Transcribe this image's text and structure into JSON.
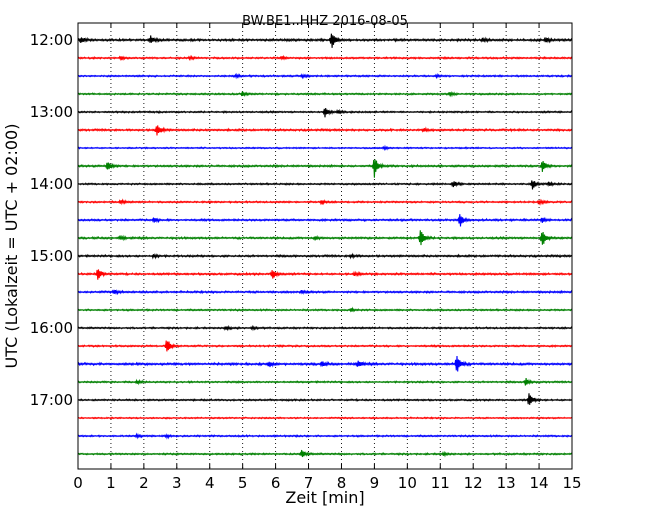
{
  "chart_data": {
    "type": "line",
    "title": "BW.BE1..HHZ 2016-08-05",
    "xlabel": "Zeit  [min]",
    "ylabel": "UTC (Lokalzeit = UTC + 02:00)",
    "xlim": [
      0,
      15
    ],
    "xticks": [
      "0",
      "1",
      "2",
      "3",
      "4",
      "5",
      "6",
      "7",
      "8",
      "9",
      "10",
      "11",
      "12",
      "13",
      "14",
      "15"
    ],
    "hour_labels": [
      "12:00",
      "13:00",
      "14:00",
      "15:00",
      "16:00",
      "17:00"
    ],
    "grid": "vertical dotted at each minute",
    "legend": "none",
    "color_cycle": [
      "#000000",
      "#ff0000",
      "#0000ff",
      "#008000"
    ],
    "series": [
      {
        "time": "12:00",
        "color": "#000000",
        "noise": 0.8,
        "events": [
          [
            0.1,
            3
          ],
          [
            2.2,
            4
          ],
          [
            7.7,
            10
          ],
          [
            12.3,
            2
          ],
          [
            14.2,
            3
          ]
        ]
      },
      {
        "time": "12:15",
        "color": "#ff0000",
        "noise": 0.6,
        "events": [
          [
            1.3,
            2
          ],
          [
            3.4,
            1.5
          ],
          [
            6.2,
            1.5
          ]
        ]
      },
      {
        "time": "12:30",
        "color": "#0000ff",
        "noise": 0.6,
        "events": [
          [
            4.8,
            1.5
          ],
          [
            6.8,
            1.5
          ],
          [
            10.9,
            1.5
          ]
        ]
      },
      {
        "time": "12:45",
        "color": "#008000",
        "noise": 0.6,
        "events": [
          [
            5.0,
            2.5
          ],
          [
            11.3,
            1.5
          ]
        ]
      },
      {
        "time": "13:00",
        "color": "#000000",
        "noise": 0.6,
        "events": [
          [
            7.5,
            5
          ],
          [
            7.9,
            2
          ]
        ]
      },
      {
        "time": "13:15",
        "color": "#ff0000",
        "noise": 0.7,
        "events": [
          [
            2.4,
            7
          ],
          [
            10.5,
            1.5
          ]
        ]
      },
      {
        "time": "13:30",
        "color": "#0000ff",
        "noise": 0.5,
        "events": [
          [
            9.3,
            1.2
          ]
        ]
      },
      {
        "time": "13:45",
        "color": "#008000",
        "noise": 0.7,
        "events": [
          [
            0.9,
            5
          ],
          [
            9.0,
            12
          ],
          [
            14.1,
            6
          ]
        ]
      },
      {
        "time": "14:00",
        "color": "#000000",
        "noise": 0.6,
        "events": [
          [
            11.4,
            3.5
          ],
          [
            13.8,
            5
          ],
          [
            14.3,
            2
          ]
        ]
      },
      {
        "time": "14:15",
        "color": "#ff0000",
        "noise": 0.6,
        "events": [
          [
            1.3,
            2
          ],
          [
            7.4,
            2
          ],
          [
            14.0,
            2
          ]
        ]
      },
      {
        "time": "14:30",
        "color": "#0000ff",
        "noise": 0.7,
        "events": [
          [
            2.3,
            2.5
          ],
          [
            11.6,
            8
          ],
          [
            14.1,
            2.5
          ]
        ]
      },
      {
        "time": "14:45",
        "color": "#008000",
        "noise": 0.7,
        "events": [
          [
            1.3,
            2
          ],
          [
            7.2,
            2
          ],
          [
            10.4,
            9
          ],
          [
            14.1,
            10
          ]
        ]
      },
      {
        "time": "15:00",
        "color": "#000000",
        "noise": 0.7,
        "events": [
          [
            2.3,
            2
          ],
          [
            8.3,
            2
          ]
        ]
      },
      {
        "time": "15:15",
        "color": "#ff0000",
        "noise": 0.7,
        "events": [
          [
            0.6,
            7
          ],
          [
            5.9,
            6
          ],
          [
            8.4,
            2
          ]
        ]
      },
      {
        "time": "15:30",
        "color": "#0000ff",
        "noise": 0.7,
        "events": [
          [
            1.1,
            2
          ],
          [
            6.8,
            1.5
          ]
        ]
      },
      {
        "time": "15:45",
        "color": "#008000",
        "noise": 0.6,
        "events": [
          [
            8.3,
            1.5
          ]
        ]
      },
      {
        "time": "16:00",
        "color": "#000000",
        "noise": 0.6,
        "events": [
          [
            4.5,
            2
          ],
          [
            5.3,
            1.5
          ]
        ]
      },
      {
        "time": "16:15",
        "color": "#ff0000",
        "noise": 0.6,
        "events": [
          [
            2.7,
            8
          ]
        ]
      },
      {
        "time": "16:30",
        "color": "#0000ff",
        "noise": 0.8,
        "events": [
          [
            5.8,
            3
          ],
          [
            7.4,
            2.5
          ],
          [
            8.5,
            4
          ],
          [
            11.5,
            11
          ]
        ]
      },
      {
        "time": "16:45",
        "color": "#008000",
        "noise": 0.6,
        "events": [
          [
            1.8,
            1.5
          ],
          [
            13.6,
            4
          ]
        ]
      },
      {
        "time": "17:00",
        "color": "#000000",
        "noise": 0.6,
        "events": [
          [
            13.7,
            8
          ]
        ]
      },
      {
        "time": "17:15",
        "color": "#ff0000",
        "noise": 0.5,
        "events": []
      },
      {
        "time": "17:30",
        "color": "#0000ff",
        "noise": 0.6,
        "events": [
          [
            1.8,
            1.5
          ],
          [
            2.7,
            1.5
          ]
        ]
      },
      {
        "time": "17:45",
        "color": "#008000",
        "noise": 0.6,
        "events": [
          [
            6.8,
            4.5
          ],
          [
            11.1,
            1.5
          ]
        ]
      }
    ]
  }
}
